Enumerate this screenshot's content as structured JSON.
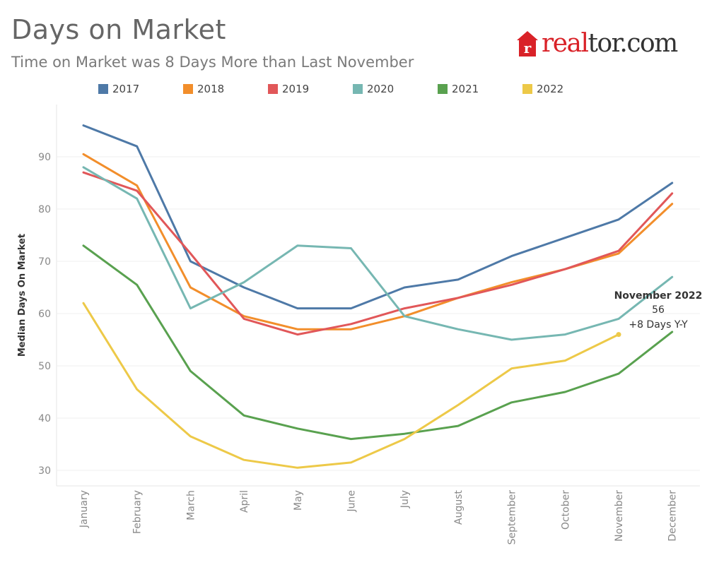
{
  "header": {
    "title": "Days on Market",
    "subtitle": "Time on Market was 8 Days More than Last November"
  },
  "logo": {
    "text_real": "real",
    "text_rest": "tor.com",
    "icon": "house-r-icon",
    "color": "#d92228"
  },
  "chart_data": {
    "type": "line",
    "title": "Days on Market",
    "subtitle": "Time on Market was 8 Days More than Last November",
    "xlabel": "",
    "ylabel": "Median Days On Market",
    "ylim": [
      27,
      99
    ],
    "yticks": [
      30,
      40,
      50,
      60,
      70,
      80,
      90
    ],
    "grid": true,
    "legend_position": "top",
    "categories": [
      "January",
      "February",
      "March",
      "April",
      "May",
      "June",
      "July",
      "August",
      "September",
      "October",
      "November",
      "December"
    ],
    "series": [
      {
        "name": "2017",
        "color": "#4e79a7",
        "values": [
          96,
          92,
          70,
          65,
          61,
          61,
          65,
          66.5,
          71,
          74.5,
          78,
          85
        ]
      },
      {
        "name": "2018",
        "color": "#f28e2b",
        "values": [
          90.5,
          84.5,
          65,
          59.5,
          57,
          57,
          59.5,
          63,
          66,
          68.5,
          71.5,
          81
        ]
      },
      {
        "name": "2019",
        "color": "#e15759",
        "values": [
          87,
          83.5,
          71.5,
          59,
          56,
          58,
          61,
          63,
          65.5,
          68.5,
          72,
          83
        ]
      },
      {
        "name": "2020",
        "color": "#76b7b2",
        "values": [
          88,
          82,
          61,
          66,
          73,
          72.5,
          59.5,
          57,
          55,
          56,
          59,
          67
        ]
      },
      {
        "name": "2021",
        "color": "#59a14f",
        "values": [
          73,
          65.5,
          49,
          40.5,
          38,
          36,
          37,
          38.5,
          43,
          45,
          48.5,
          56.5
        ]
      },
      {
        "name": "2022",
        "color": "#edc948",
        "values": [
          62,
          45.5,
          36.5,
          32,
          30.5,
          31.5,
          36,
          42.5,
          49.5,
          51,
          56,
          null
        ]
      }
    ],
    "annotation": {
      "line1": "November 2022",
      "line2": "56",
      "line3": "+8 Days Y-Y"
    }
  }
}
